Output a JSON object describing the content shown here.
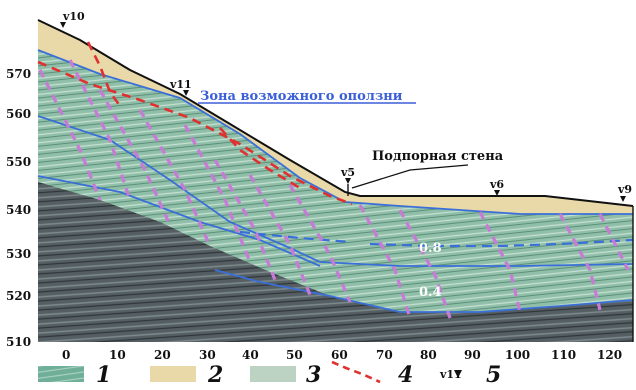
{
  "title_zone": "Зона возможного оползни",
  "label_wall": "Подпорная стена",
  "wells": [
    "v10",
    "v11",
    "v5",
    "v6",
    "v9"
  ],
  "iso_labels": [
    "0.8",
    "0.4"
  ],
  "y_ticks": [
    "570",
    "560",
    "550",
    "540",
    "530",
    "520",
    "510"
  ],
  "x_ticks": [
    "0",
    "10",
    "20",
    "30",
    "40",
    "50",
    "60",
    "70",
    "80",
    "90",
    "100",
    "110",
    "120"
  ],
  "legend": [
    {
      "num": "1",
      "kind": "rock-swatch",
      "color": "#6fae98"
    },
    {
      "num": "2",
      "kind": "sand-swatch",
      "color": "#e9d8a8"
    },
    {
      "num": "3",
      "kind": "pale-swatch",
      "color": "#bcd2c2"
    },
    {
      "num": "4",
      "kind": "slip-line",
      "color": "#e03030"
    },
    {
      "num": "5",
      "kind": "well-marker",
      "color": "#111111"
    }
  ],
  "colors": {
    "sand": "#e9d8a8",
    "weathered": "#9cc6b2",
    "bedrock": "#4f5a5e",
    "blue_line": "#3b6fd8",
    "slip_red": "#e03030",
    "purple": "#c77ad6"
  }
}
